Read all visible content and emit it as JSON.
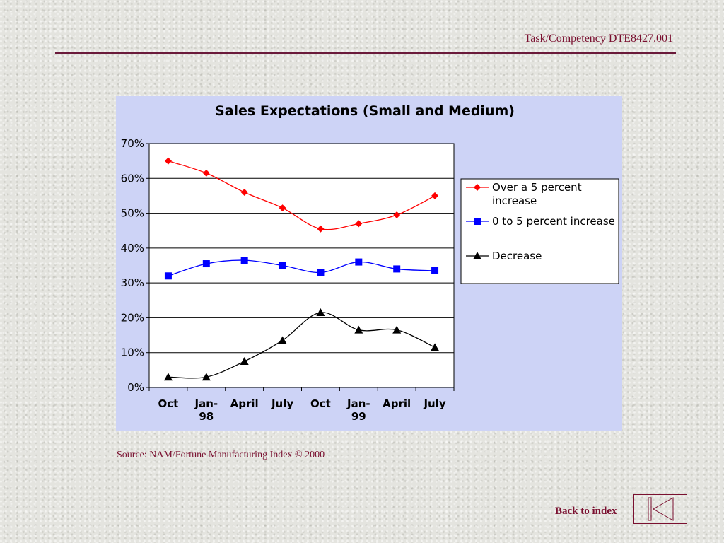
{
  "header": {
    "task_label": "Task/Competency DTE8427.001"
  },
  "footer": {
    "source": "Source: NAM/Fortune Manufacturing Index © 2000",
    "back_link": "Back to index"
  },
  "icons": {
    "back_button": "first-page-icon"
  },
  "colors": {
    "accent": "#7a1030",
    "rule": "#6a1a3a",
    "chart_background": "#cdd3f6",
    "series": [
      "#ff0000",
      "#0000ff",
      "#000000"
    ]
  },
  "chart_data": {
    "type": "line",
    "title": "Sales Expectations (Small and Medium)",
    "xlabel": "",
    "ylabel": "",
    "categories": [
      "Oct",
      "Jan-98",
      "April",
      "July",
      "Oct",
      "Jan-99",
      "April",
      "July"
    ],
    "category_lines": [
      [
        "Oct"
      ],
      [
        "Jan-",
        "98"
      ],
      [
        "April"
      ],
      [
        "July"
      ],
      [
        "Oct"
      ],
      [
        "Jan-",
        "99"
      ],
      [
        "April"
      ],
      [
        "July"
      ]
    ],
    "ylim": [
      0,
      70
    ],
    "yticks": [
      "0%",
      "10%",
      "20%",
      "30%",
      "40%",
      "50%",
      "60%",
      "70%"
    ],
    "grid": true,
    "legend_position": "right",
    "series": [
      {
        "name": "Over a 5 percent increase",
        "name_lines": [
          "Over a 5 percent",
          "increase"
        ],
        "color": "#ff0000",
        "marker": "diamond",
        "values": [
          65,
          61.5,
          56,
          51.5,
          45.5,
          47,
          49.5,
          55
        ]
      },
      {
        "name": "0 to 5 percent increase",
        "name_lines": [
          "0 to 5 percent increase"
        ],
        "color": "#0000ff",
        "marker": "square",
        "values": [
          32,
          35.5,
          36.5,
          35,
          33,
          36,
          34,
          33.5
        ]
      },
      {
        "name": "Decrease",
        "name_lines": [
          "Decrease"
        ],
        "color": "#000000",
        "marker": "triangle",
        "values": [
          3,
          3,
          7.5,
          13.5,
          21.5,
          16.5,
          16.5,
          11.5
        ]
      }
    ]
  }
}
